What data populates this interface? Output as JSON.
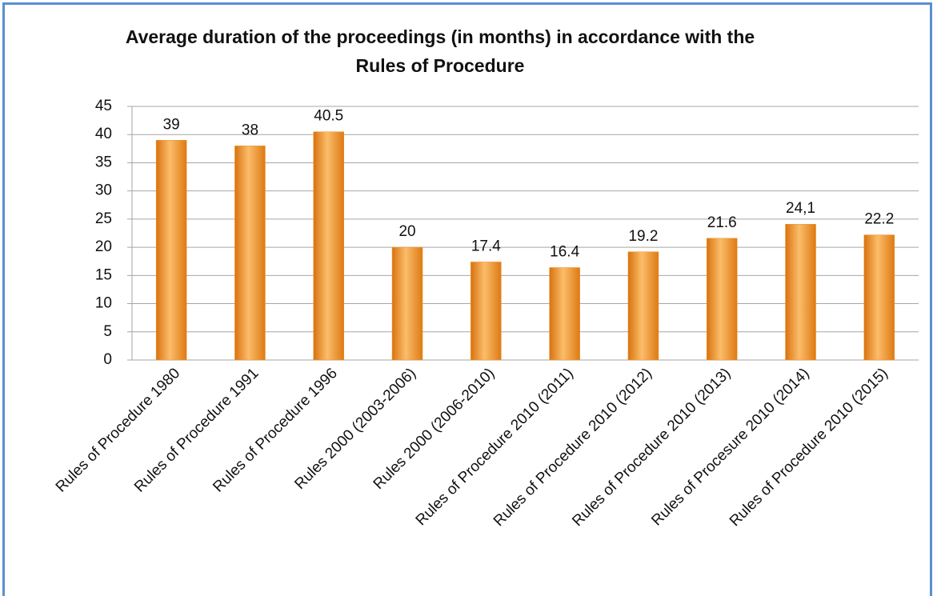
{
  "chart_data": {
    "type": "bar",
    "title": "Average duration of the proceedings (in months) in accordance with the Rules of Procedure",
    "categories": [
      "Rules of Procedure 1980",
      "Rules of Procedure 1991",
      "Rules of Procedure 1996",
      "Rules 2000 (2003-2006)",
      "Rules 2000 (2006-2010)",
      "Rules of Procedure 2010 (2011)",
      "Rules of Procedure 2010 (2012)",
      "Rules of Procedure 2010 (2013)",
      "Rules of Procesure 2010 (2014)",
      "Rules of Procedure 2010 (2015)"
    ],
    "values": [
      39,
      38,
      40.5,
      20,
      17.4,
      16.4,
      19.2,
      21.6,
      24.1,
      22.2
    ],
    "value_labels": [
      "39",
      "38",
      "40.5",
      "20",
      "17.4",
      "16.4",
      "19.2",
      "21.6",
      "24,1",
      "22.2"
    ],
    "color": "#f0922a",
    "ylim": [
      0,
      45
    ],
    "yticks": [
      0,
      5,
      10,
      15,
      20,
      25,
      30,
      35,
      40,
      45
    ],
    "grid": true
  }
}
